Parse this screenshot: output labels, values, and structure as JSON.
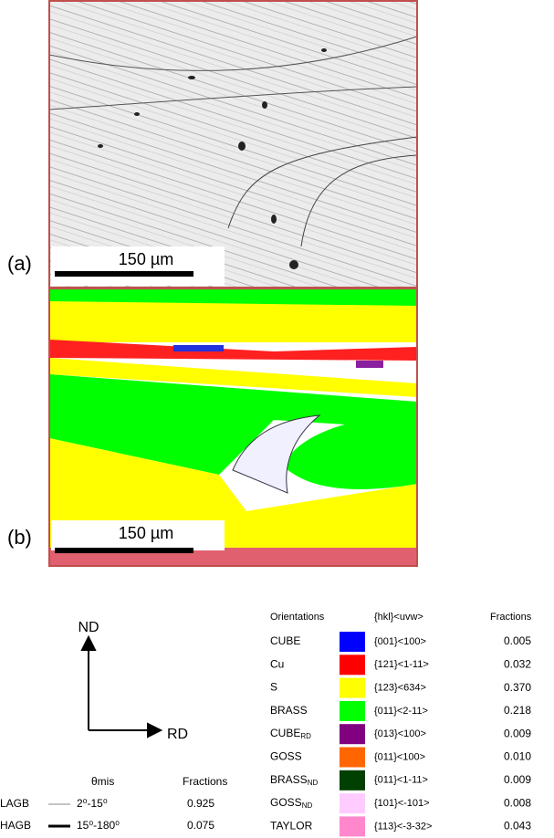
{
  "panels": [
    {
      "label": "(a)",
      "scale_bar": "150 µm"
    },
    {
      "label": "(b)",
      "scale_bar": "150 µm"
    }
  ],
  "axes": {
    "vertical": "ND",
    "horizontal": "RD"
  },
  "boundaries": {
    "headers": [
      "θmis",
      "Fractions"
    ],
    "rows": [
      {
        "name": "LAGB",
        "range": "2⁰-15⁰",
        "fraction": "0.925"
      },
      {
        "name": "HAGB",
        "range": "15⁰-180⁰",
        "fraction": "0.075"
      }
    ]
  },
  "orientations": {
    "headers": [
      "Orientations",
      "{hkl}<uvw>",
      "Fractions"
    ],
    "rows": [
      {
        "name": "CUBE",
        "color": "#0000ff",
        "hkl": "{001}<100>",
        "fraction": "0.005"
      },
      {
        "name": "Cu",
        "color": "#ff0000",
        "hkl": "{121}<1-11>",
        "fraction": "0.032"
      },
      {
        "name": "S",
        "color": "#ffff00",
        "hkl": "{123}<634>",
        "fraction": "0.370"
      },
      {
        "name": "BRASS",
        "color": "#00ff00",
        "hkl": "{011}<2-11>",
        "fraction": "0.218"
      },
      {
        "name": "CUBE",
        "sub": "RD",
        "color": "#800080",
        "hkl": "{013}<100>",
        "fraction": "0.009"
      },
      {
        "name": "GOSS",
        "color": "#ff6600",
        "hkl": "{011}<100>",
        "fraction": "0.010"
      },
      {
        "name": "BRASS",
        "sub": "ND",
        "color": "#004000",
        "hkl": "{011}<1-11>",
        "fraction": "0.009"
      },
      {
        "name": "GOSS",
        "sub": "ND",
        "color": "#ffccff",
        "hkl": "{101}<-101>",
        "fraction": "0.008"
      },
      {
        "name": "TAYLOR",
        "color": "#ff88cc",
        "hkl": "{113}<-3-32>",
        "fraction": "0.043"
      }
    ]
  }
}
